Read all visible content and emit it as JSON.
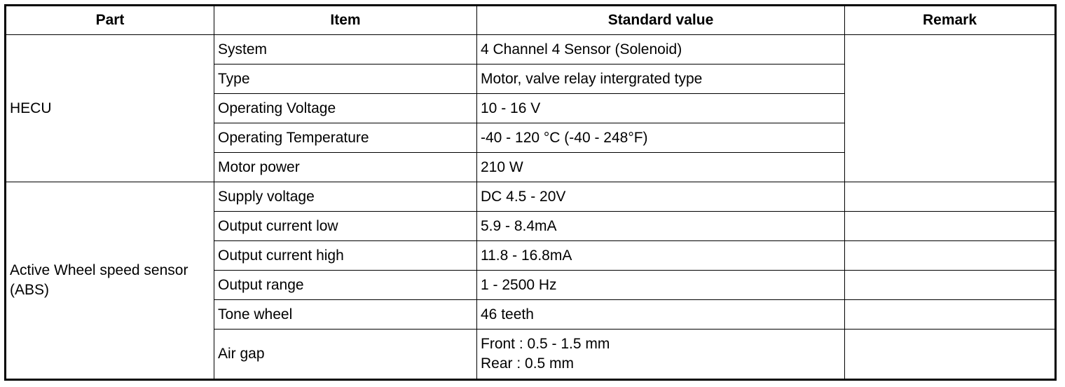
{
  "table": {
    "header": [
      "Part",
      "Item",
      "Standard value",
      "Remark"
    ],
    "groups": [
      {
        "part": "HECU",
        "rows": [
          {
            "item": "System",
            "value": "4 Channel 4 Sensor (Solenoid)"
          },
          {
            "item": "Type",
            "value": "Motor, valve relay intergrated type"
          },
          {
            "item": "Operating Voltage",
            "value": "10 - 16 V"
          },
          {
            "item": "Operating Temperature",
            "value": "-40 - 120 °C (-40 - 248°F)"
          },
          {
            "item": "Motor power",
            "value": "210 W"
          }
        ]
      },
      {
        "part": "Active Wheel speed sensor (ABS)",
        "rows": [
          {
            "item": "Supply voltage",
            "value": "DC 4.5 - 20V"
          },
          {
            "item": "Output current low",
            "value": "5.9 - 8.4mA"
          },
          {
            "item": "Output current high",
            "value": "11.8 - 16.8mA"
          },
          {
            "item": "Output range",
            "value": "1 - 2500 Hz"
          },
          {
            "item": "Tone wheel",
            "value": "46 teeth"
          },
          {
            "item": "Air gap",
            "value": [
              "Front : 0.5 - 1.5 mm",
              "Rear : 0.5 mm"
            ]
          }
        ]
      }
    ]
  }
}
